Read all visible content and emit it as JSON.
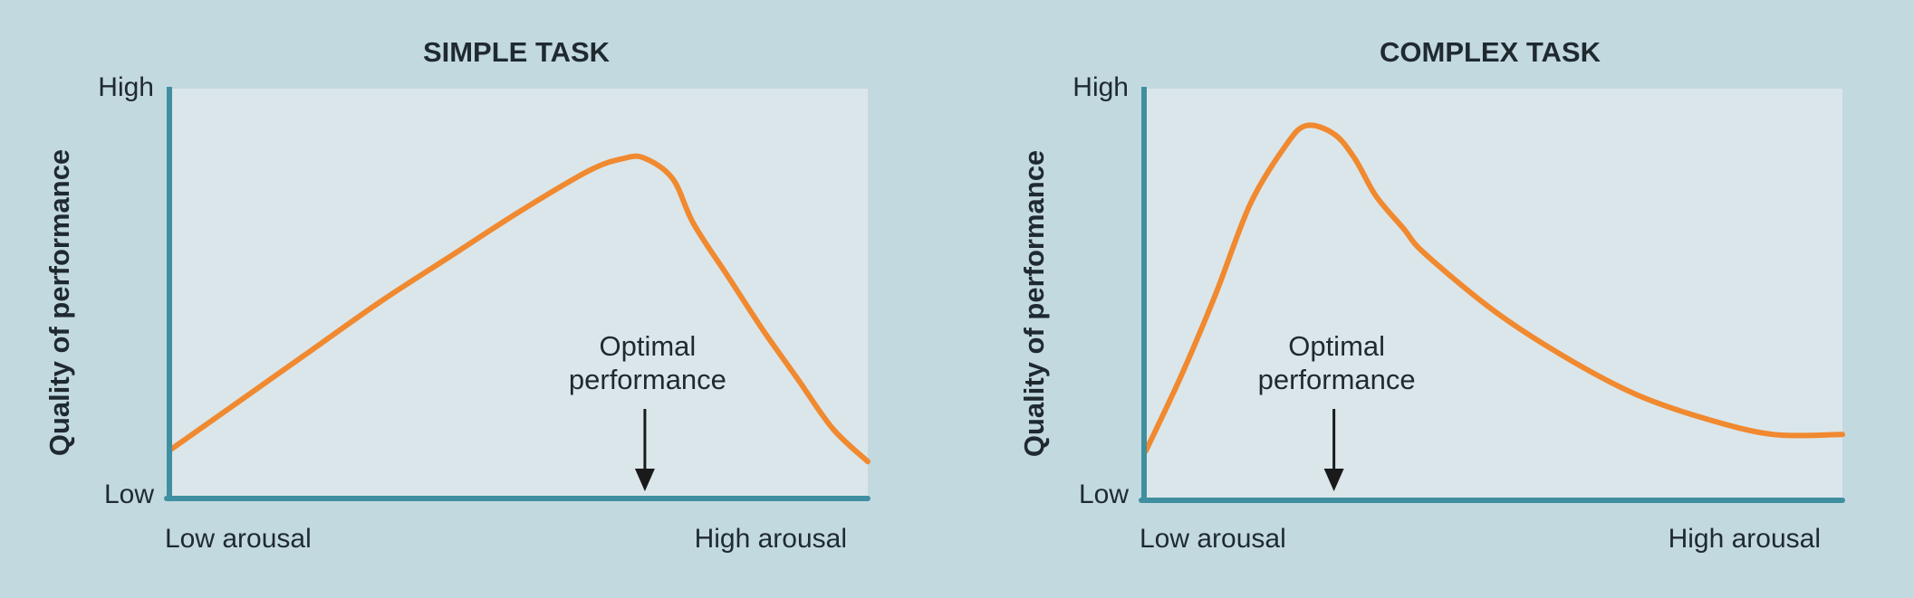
{
  "colors": {
    "background": "#c3d9e0",
    "plot_area": "#dbe6ea",
    "axis": "#3f8fa0",
    "curve": "#f0892f",
    "arrow": "#1a1a1a",
    "text": "#1f2a30"
  },
  "chart_data": [
    {
      "type": "line",
      "title": "SIMPLE TASK",
      "xlabel": "",
      "ylabel": "Quality of performance",
      "x_tick_labels": [
        "Low arousal",
        "High arousal"
      ],
      "y_tick_labels": [
        "Low",
        "High"
      ],
      "xlim": [
        0,
        1
      ],
      "ylim": [
        0,
        1
      ],
      "grid": false,
      "series": [
        {
          "x": [
            0,
            0.1,
            0.2,
            0.3,
            0.4,
            0.5,
            0.6,
            0.65,
            0.68,
            0.72,
            0.75,
            0.8,
            0.85,
            0.9,
            0.95,
            1.0
          ],
          "y": [
            0.12,
            0.24,
            0.36,
            0.48,
            0.59,
            0.7,
            0.8,
            0.83,
            0.83,
            0.78,
            0.67,
            0.54,
            0.41,
            0.29,
            0.17,
            0.09
          ]
        }
      ],
      "annotation": {
        "text": [
          "Optimal",
          "performance"
        ],
        "x": 0.68
      }
    },
    {
      "type": "line",
      "title": "COMPLEX TASK",
      "xlabel": "",
      "ylabel": "Quality of performance",
      "x_tick_labels": [
        "Low arousal",
        "High arousal"
      ],
      "y_tick_labels": [
        "Low",
        "High"
      ],
      "xlim": [
        0,
        1
      ],
      "ylim": [
        0,
        1
      ],
      "grid": false,
      "series": [
        {
          "x": [
            0,
            0.05,
            0.1,
            0.15,
            0.2,
            0.23,
            0.27,
            0.3,
            0.33,
            0.37,
            0.4,
            0.5,
            0.6,
            0.7,
            0.8,
            0.9,
            1.0
          ],
          "y": [
            0.12,
            0.3,
            0.5,
            0.72,
            0.86,
            0.91,
            0.89,
            0.83,
            0.74,
            0.66,
            0.6,
            0.46,
            0.35,
            0.26,
            0.2,
            0.16,
            0.16
          ]
        }
      ],
      "annotation": {
        "text": [
          "Optimal",
          "performance"
        ],
        "x": 0.27
      }
    }
  ]
}
